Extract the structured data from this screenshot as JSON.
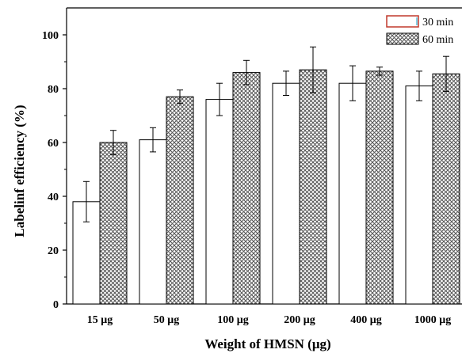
{
  "chart_data": {
    "type": "bar",
    "categories": [
      "15 μg",
      "50 μg",
      "100 μg",
      "200 μg",
      "400 μg",
      "1000 μg"
    ],
    "series": [
      {
        "name": "30 min",
        "values": [
          38,
          61,
          76,
          82,
          82,
          81
        ],
        "errors": [
          7.5,
          4.5,
          6,
          4.5,
          6.5,
          5.5
        ],
        "pattern": "plain"
      },
      {
        "name": "60 min",
        "values": [
          60,
          77,
          86,
          87,
          86.5,
          85.5
        ],
        "errors": [
          4.5,
          2.5,
          4.5,
          8.5,
          1.5,
          6.5
        ],
        "pattern": "crosshatch"
      }
    ],
    "xlabel": "Weight of HMSN (μg)",
    "ylabel": "Labelinf efficiency (%)",
    "ylim": [
      0,
      110
    ],
    "yticks": [
      0,
      20,
      40,
      60,
      80,
      100
    ],
    "grid": false,
    "legend_position": "top-right",
    "colors": {
      "bar_fill_plain": "#ffffff",
      "bar_outline": "#000000",
      "hatch": "#555555",
      "legend_box_30_border": "#c0392b",
      "legend_box_30_fill": "#5bc0de"
    }
  }
}
